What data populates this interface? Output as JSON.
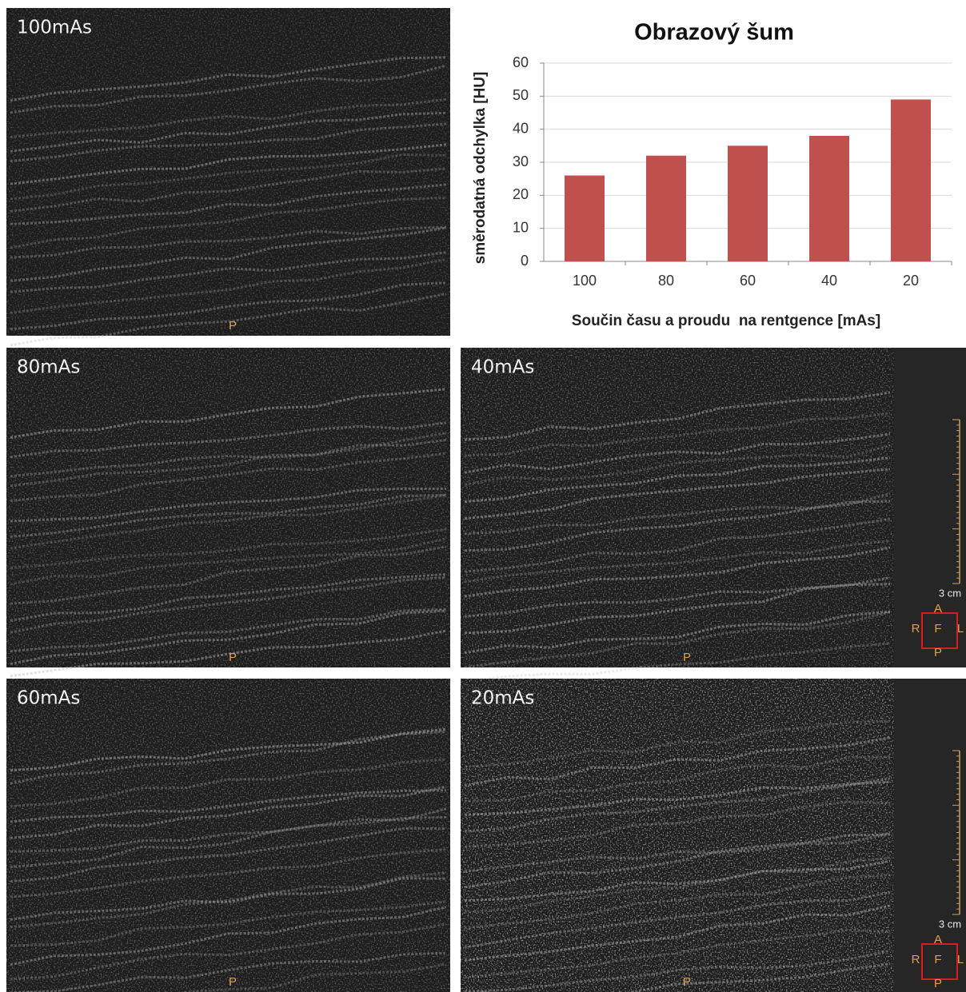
{
  "chart_data": {
    "type": "bar",
    "title": "Obrazový šum",
    "x_label": "Součin času a proudu  na rentgence [mAs]",
    "y_label": "směrodatná odchylka [HU]",
    "categories": [
      "100",
      "80",
      "60",
      "40",
      "20"
    ],
    "values": [
      26,
      32,
      35,
      38,
      49
    ],
    "color": "#c0504d",
    "ylim": [
      0,
      60
    ],
    "yticks": [
      0,
      10,
      20,
      30,
      40,
      50,
      60
    ],
    "grid": true
  },
  "panels": [
    {
      "label": "100mAs",
      "marker": "P"
    },
    {
      "label": "80mAs",
      "marker": "P"
    },
    {
      "label": "40mAs",
      "marker": "P",
      "orientation": {
        "scale": "3 cm",
        "top": "A",
        "left": "R",
        "center": "F",
        "right": "L",
        "bottom": "P"
      }
    },
    {
      "label": "60mAs",
      "marker": "P"
    },
    {
      "label": "20mAs",
      "marker": "P",
      "orientation": {
        "scale": "3 cm",
        "top": "A",
        "left": "R",
        "center": "F",
        "right": "L",
        "bottom": "P"
      }
    }
  ]
}
